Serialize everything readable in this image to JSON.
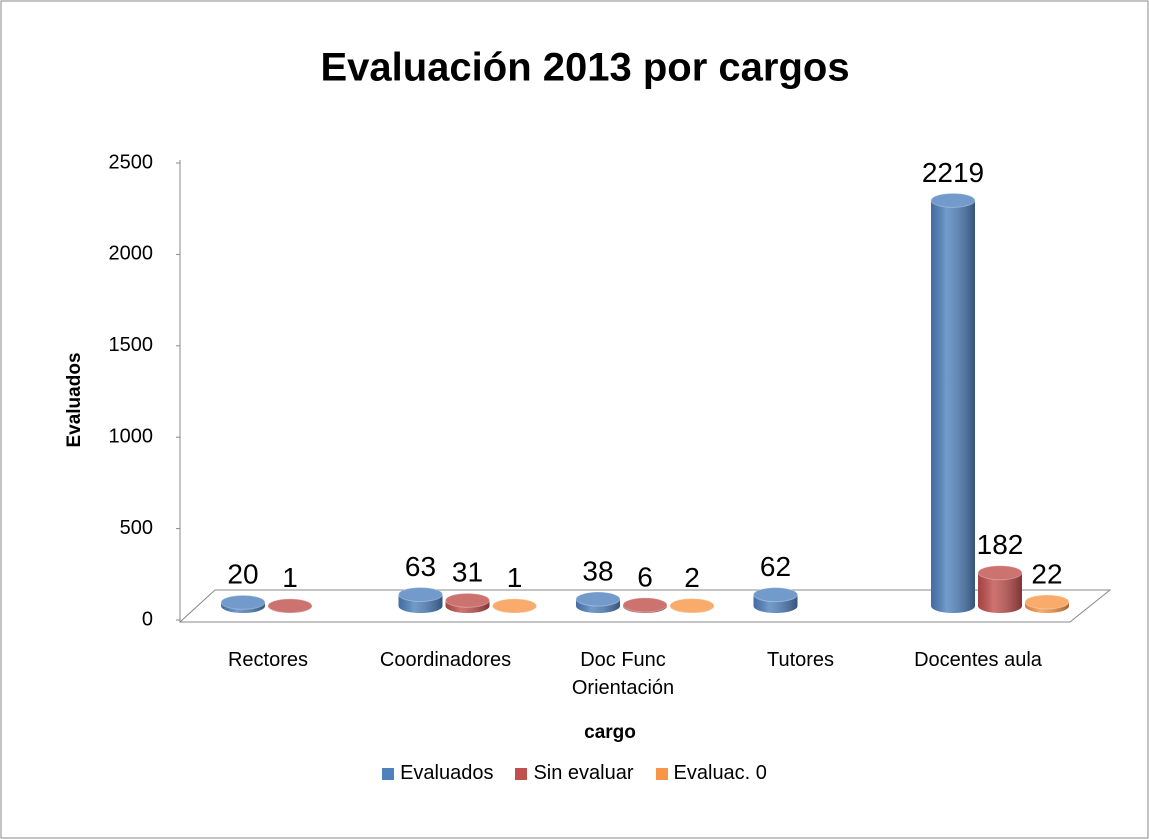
{
  "chart_data": {
    "type": "bar3d",
    "title": "Evaluación 2013 por cargos",
    "categories": [
      "Rectores",
      "Coordinadores",
      "Doc Func Orientación",
      "Tutores",
      "Docentes aula"
    ],
    "series": [
      {
        "name": "Evaluados",
        "color": "#4f81bd",
        "values": [
          20,
          63,
          38,
          62,
          2219
        ]
      },
      {
        "name": "Sin evaluar",
        "color": "#c0504d",
        "values": [
          1,
          31,
          6,
          null,
          182
        ]
      },
      {
        "name": "Evaluac. 0",
        "color": "#f79646",
        "values": [
          null,
          1,
          2,
          null,
          22
        ]
      }
    ],
    "y_label": "Evaluados",
    "x_label": "cargo",
    "ylim": [
      0,
      2500
    ],
    "yticks": [
      0,
      500,
      1000,
      1500,
      2000,
      2500
    ],
    "legend": "bottom"
  }
}
